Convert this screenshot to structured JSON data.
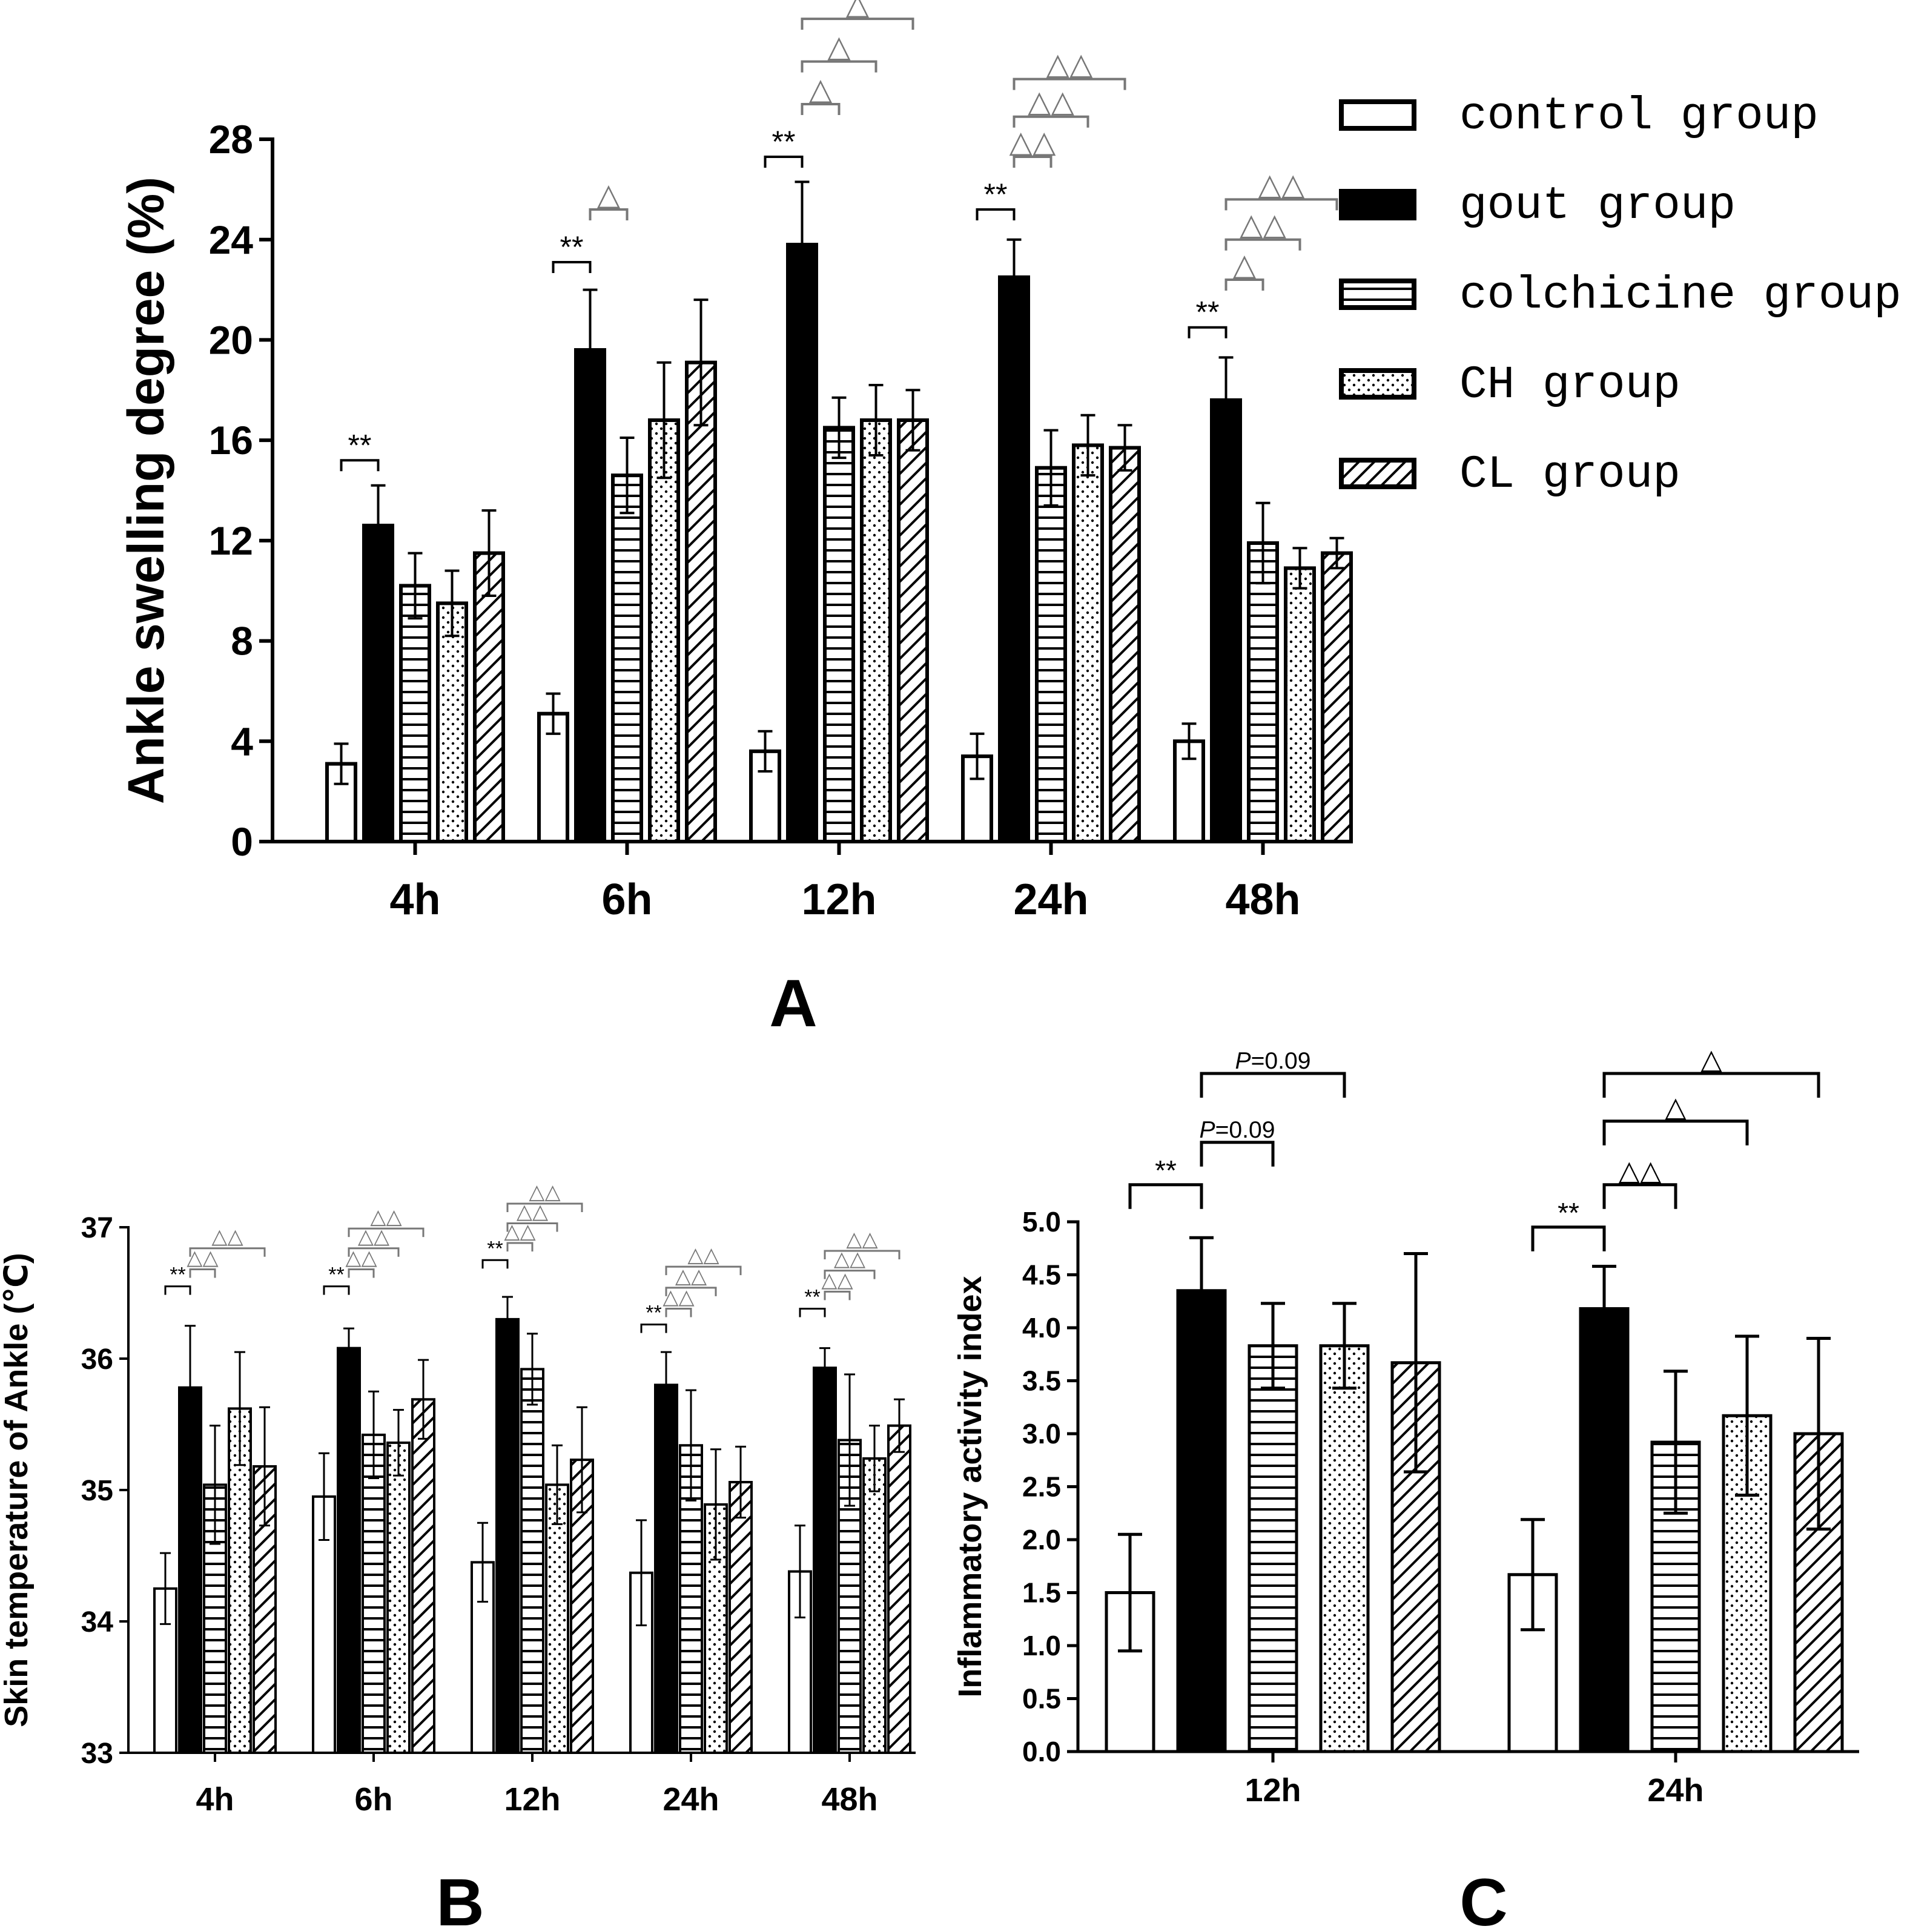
{
  "colors": {
    "ink": "#000000",
    "paper": "#ffffff",
    "annotation": "#777777"
  },
  "legend": [
    {
      "label": "control group",
      "pattern": "open"
    },
    {
      "label": "gout group",
      "pattern": "solid"
    },
    {
      "label": "colchicine group",
      "pattern": "hlines"
    },
    {
      "label": "CH group",
      "pattern": "dots"
    },
    {
      "label": "CL group",
      "pattern": "diag"
    }
  ],
  "chart_data": [
    {
      "panel": "A",
      "type": "bar",
      "ylabel": "Ankle swelling degree (%)",
      "ylim": [
        0,
        28
      ],
      "yticks": [
        0,
        4,
        8,
        12,
        16,
        20,
        24,
        28
      ],
      "categories": [
        "4h",
        "6h",
        "12h",
        "24h",
        "48h"
      ],
      "series": [
        {
          "name": "control group",
          "values": [
            3.1,
            5.1,
            3.6,
            3.4,
            4.0
          ],
          "errors": [
            0.8,
            0.8,
            0.8,
            0.9,
            0.7
          ]
        },
        {
          "name": "gout group",
          "values": [
            12.6,
            19.6,
            23.8,
            22.5,
            17.6
          ],
          "errors": [
            1.6,
            2.4,
            2.5,
            1.5,
            1.7
          ]
        },
        {
          "name": "colchicine group",
          "values": [
            10.2,
            14.6,
            16.5,
            14.9,
            11.9
          ],
          "errors": [
            1.3,
            1.5,
            1.2,
            1.5,
            1.6
          ]
        },
        {
          "name": "CH group",
          "values": [
            9.5,
            16.8,
            16.8,
            15.8,
            10.9
          ],
          "errors": [
            1.3,
            2.3,
            1.4,
            1.2,
            0.8
          ]
        },
        {
          "name": "CL group",
          "values": [
            11.5,
            19.1,
            16.8,
            15.7,
            11.5
          ],
          "errors": [
            1.7,
            2.5,
            1.2,
            0.9,
            0.6
          ]
        }
      ],
      "significance": [
        {
          "category": "4h",
          "from": 0,
          "to": 1,
          "text": "**",
          "y": 15.2
        },
        {
          "category": "6h",
          "from": 0,
          "to": 1,
          "text": "**",
          "y": 23.1
        },
        {
          "category": "6h",
          "from": 1,
          "to": 2,
          "text": "△",
          "y": 25.2
        },
        {
          "category": "12h",
          "from": 0,
          "to": 1,
          "text": "**",
          "y": 27.3
        },
        {
          "category": "12h",
          "from": 1,
          "to": 2,
          "text": "△",
          "y": 29.4
        },
        {
          "category": "12h",
          "from": 1,
          "to": 3,
          "text": "△",
          "y": 31.1
        },
        {
          "category": "12h",
          "from": 1,
          "to": 4,
          "text": "△",
          "y": 32.8
        },
        {
          "category": "24h",
          "from": 0,
          "to": 1,
          "text": "**",
          "y": 25.2
        },
        {
          "category": "24h",
          "from": 1,
          "to": 2,
          "text": "△△",
          "y": 27.3
        },
        {
          "category": "24h",
          "from": 1,
          "to": 3,
          "text": "△△",
          "y": 28.9
        },
        {
          "category": "24h",
          "from": 1,
          "to": 4,
          "text": "△△",
          "y": 30.4
        },
        {
          "category": "48h",
          "from": 0,
          "to": 1,
          "text": "**",
          "y": 20.5
        },
        {
          "category": "48h",
          "from": 1,
          "to": 2,
          "text": "△",
          "y": 22.4
        },
        {
          "category": "48h",
          "from": 1,
          "to": 3,
          "text": "△△",
          "y": 24.0
        },
        {
          "category": "48h",
          "from": 1,
          "to": 4,
          "text": "△△",
          "y": 25.6
        }
      ]
    },
    {
      "panel": "B",
      "type": "bar",
      "ylabel": "Skin temperature of Ankle (℃)",
      "ylim": [
        33,
        37
      ],
      "yticks": [
        33,
        34,
        35,
        36,
        37
      ],
      "categories": [
        "4h",
        "6h",
        "12h",
        "24h",
        "48h"
      ],
      "series": [
        {
          "name": "control group",
          "values": [
            34.25,
            34.95,
            34.45,
            34.37,
            34.38
          ],
          "errors": [
            0.27,
            0.33,
            0.3,
            0.4,
            0.35
          ]
        },
        {
          "name": "gout group",
          "values": [
            35.78,
            36.08,
            36.3,
            35.8,
            35.93
          ],
          "errors": [
            0.47,
            0.15,
            0.17,
            0.25,
            0.15
          ]
        },
        {
          "name": "colchicine group",
          "values": [
            35.04,
            35.42,
            35.92,
            35.34,
            35.38
          ],
          "errors": [
            0.45,
            0.33,
            0.27,
            0.42,
            0.5
          ]
        },
        {
          "name": "CH group",
          "values": [
            35.62,
            35.36,
            35.04,
            34.89,
            35.24
          ],
          "errors": [
            0.43,
            0.25,
            0.3,
            0.42,
            0.25
          ]
        },
        {
          "name": "CL group",
          "values": [
            35.18,
            35.69,
            35.23,
            35.06,
            35.49
          ],
          "errors": [
            0.45,
            0.3,
            0.4,
            0.27,
            0.2
          ]
        }
      ],
      "significance": [
        {
          "category": "4h",
          "from": 0,
          "to": 1,
          "text": "**",
          "y": 36.55
        },
        {
          "category": "4h",
          "from": 1,
          "to": 2,
          "text": "△△",
          "y": 36.68
        },
        {
          "category": "4h",
          "from": 1,
          "to": 4,
          "text": "△△",
          "y": 36.84
        },
        {
          "category": "6h",
          "from": 0,
          "to": 1,
          "text": "**",
          "y": 36.55
        },
        {
          "category": "6h",
          "from": 1,
          "to": 2,
          "text": "△△",
          "y": 36.68
        },
        {
          "category": "6h",
          "from": 1,
          "to": 3,
          "text": "△△",
          "y": 36.84
        },
        {
          "category": "6h",
          "from": 1,
          "to": 4,
          "text": "△△",
          "y": 36.99
        },
        {
          "category": "12h",
          "from": 0,
          "to": 1,
          "text": "**",
          "y": 36.75
        },
        {
          "category": "12h",
          "from": 1,
          "to": 2,
          "text": "△△",
          "y": 36.88
        },
        {
          "category": "12h",
          "from": 1,
          "to": 3,
          "text": "△△",
          "y": 37.03
        },
        {
          "category": "12h",
          "from": 1,
          "to": 4,
          "text": "△△",
          "y": 37.18
        },
        {
          "category": "24h",
          "from": 0,
          "to": 1,
          "text": "**",
          "y": 36.26
        },
        {
          "category": "24h",
          "from": 1,
          "to": 2,
          "text": "△△",
          "y": 36.38
        },
        {
          "category": "24h",
          "from": 1,
          "to": 3,
          "text": "△△",
          "y": 36.54
        },
        {
          "category": "24h",
          "from": 1,
          "to": 4,
          "text": "△△",
          "y": 36.7
        },
        {
          "category": "48h",
          "from": 0,
          "to": 1,
          "text": "**",
          "y": 36.38
        },
        {
          "category": "48h",
          "from": 1,
          "to": 2,
          "text": "△△",
          "y": 36.51
        },
        {
          "category": "48h",
          "from": 1,
          "to": 3,
          "text": "△△",
          "y": 36.67
        },
        {
          "category": "48h",
          "from": 1,
          "to": 4,
          "text": "△△",
          "y": 36.82
        }
      ]
    },
    {
      "panel": "C",
      "type": "bar",
      "ylabel": "Inflammatory activity index",
      "ylim": [
        0,
        5
      ],
      "yticks": [
        0.0,
        0.5,
        1.0,
        1.5,
        2.0,
        2.5,
        3.0,
        3.5,
        4.0,
        4.5,
        5.0
      ],
      "categories": [
        "12h",
        "24h"
      ],
      "series": [
        {
          "name": "control group",
          "values": [
            1.5,
            1.67
          ],
          "errors": [
            0.55,
            0.52
          ]
        },
        {
          "name": "gout group",
          "values": [
            4.35,
            4.18
          ],
          "errors": [
            0.5,
            0.4
          ]
        },
        {
          "name": "colchicine group",
          "values": [
            3.83,
            2.92
          ],
          "errors": [
            0.4,
            0.67
          ]
        },
        {
          "name": "CH group",
          "values": [
            3.83,
            3.17
          ],
          "errors": [
            0.4,
            0.75
          ]
        },
        {
          "name": "CL group",
          "values": [
            3.67,
            3.0
          ],
          "errors": [
            1.03,
            0.9
          ]
        }
      ],
      "significance": [
        {
          "category": "12h",
          "from": 0,
          "to": 1,
          "text": "**",
          "y": 5.35
        },
        {
          "category": "12h",
          "from": 1,
          "to": 2,
          "text": "P=0.09",
          "y": 5.75
        },
        {
          "category": "12h",
          "from": 1,
          "to": 3,
          "text": "P=0.09",
          "y": 6.4
        },
        {
          "category": "24h",
          "from": 0,
          "to": 1,
          "text": "**",
          "y": 4.95
        },
        {
          "category": "24h",
          "from": 1,
          "to": 2,
          "text": "△△",
          "y": 5.35
        },
        {
          "category": "24h",
          "from": 1,
          "to": 3,
          "text": "△",
          "y": 5.95
        },
        {
          "category": "24h",
          "from": 1,
          "to": 4,
          "text": "△",
          "y": 6.4
        }
      ]
    }
  ]
}
